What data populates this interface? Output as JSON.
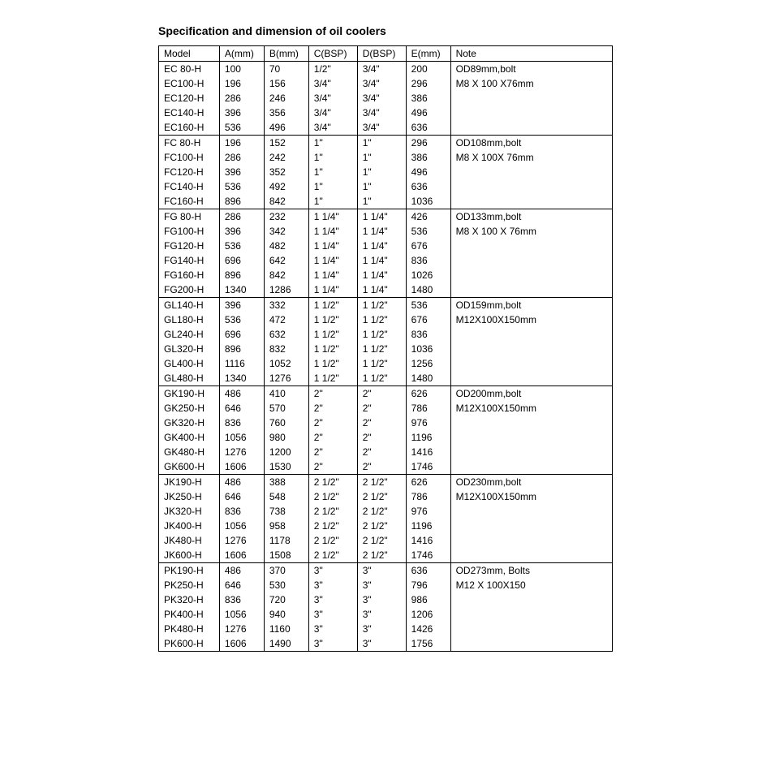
{
  "title": "Specification and dimension of oil coolers",
  "columns": [
    "Model",
    "A(mm)",
    "B(mm)",
    "C(BSP)",
    "D(BSP)",
    "E(mm)",
    "Note"
  ],
  "groups": [
    {
      "note": [
        "OD89mm,bolt",
        "M8 X 100 X76mm"
      ],
      "rows": [
        [
          "EC 80-H",
          "100",
          "70",
          "1/2\"",
          "3/4\"",
          "200"
        ],
        [
          "EC100-H",
          "196",
          "156",
          "3/4\"",
          "3/4\"",
          "296"
        ],
        [
          "EC120-H",
          "286",
          "246",
          "3/4\"",
          "3/4\"",
          "386"
        ],
        [
          "EC140-H",
          "396",
          "356",
          "3/4\"",
          "3/4\"",
          "496"
        ],
        [
          "EC160-H",
          "536",
          "496",
          "3/4\"",
          "3/4\"",
          "636"
        ]
      ]
    },
    {
      "note": [
        "OD108mm,bolt",
        "M8 X 100X 76mm"
      ],
      "rows": [
        [
          "FC 80-H",
          "196",
          "152",
          "1\"",
          "1\"",
          "296"
        ],
        [
          "FC100-H",
          "286",
          "242",
          "1\"",
          "1\"",
          "386"
        ],
        [
          "FC120-H",
          "396",
          "352",
          "1\"",
          "1\"",
          "496"
        ],
        [
          "FC140-H",
          "536",
          "492",
          "1\"",
          "1\"",
          "636"
        ],
        [
          "FC160-H",
          "896",
          "842",
          "1\"",
          "1\"",
          "1036"
        ]
      ]
    },
    {
      "note": [
        "OD133mm,bolt",
        "M8 X 100 X 76mm"
      ],
      "rows": [
        [
          "FG 80-H",
          "286",
          "232",
          "1 1/4\"",
          "1 1/4\"",
          "426"
        ],
        [
          "FG100-H",
          "396",
          "342",
          "1 1/4\"",
          "1 1/4\"",
          "536"
        ],
        [
          "FG120-H",
          "536",
          "482",
          "1 1/4\"",
          "1 1/4\"",
          "676"
        ],
        [
          "FG140-H",
          "696",
          "642",
          "1 1/4\"",
          "1 1/4\"",
          "836"
        ],
        [
          "FG160-H",
          "896",
          "842",
          "1 1/4\"",
          "1 1/4\"",
          "1026"
        ],
        [
          "FG200-H",
          "1340",
          "1286",
          "1 1/4\"",
          "1 1/4\"",
          "1480"
        ]
      ]
    },
    {
      "note": [
        "OD159mm,bolt",
        "M12X100X150mm"
      ],
      "rows": [
        [
          "GL140-H",
          "396",
          "332",
          "1 1/2\"",
          "1 1/2\"",
          "536"
        ],
        [
          "GL180-H",
          "536",
          "472",
          "1 1/2\"",
          "1 1/2\"",
          "676"
        ],
        [
          "GL240-H",
          "696",
          "632",
          "1 1/2\"",
          "1 1/2\"",
          "836"
        ],
        [
          "GL320-H",
          "896",
          "832",
          "1 1/2\"",
          "1 1/2\"",
          "1036"
        ],
        [
          "GL400-H",
          "1116",
          "1052",
          "1 1/2\"",
          "1 1/2\"",
          "1256"
        ],
        [
          "GL480-H",
          "1340",
          "1276",
          "1 1/2\"",
          "1 1/2\"",
          "1480"
        ]
      ]
    },
    {
      "note": [
        "OD200mm,bolt",
        "M12X100X150mm"
      ],
      "rows": [
        [
          "GK190-H",
          "486",
          "410",
          "2\"",
          "2\"",
          "626"
        ],
        [
          "GK250-H",
          "646",
          "570",
          "2\"",
          "2\"",
          "786"
        ],
        [
          "GK320-H",
          "836",
          "760",
          "2\"",
          "2\"",
          "976"
        ],
        [
          "GK400-H",
          "1056",
          "980",
          "2\"",
          "2\"",
          "1196"
        ],
        [
          "GK480-H",
          "1276",
          "1200",
          "2\"",
          "2\"",
          "1416"
        ],
        [
          "GK600-H",
          "1606",
          "1530",
          "2\"",
          "2\"",
          "1746"
        ]
      ]
    },
    {
      "note": [
        "OD230mm,bolt",
        "M12X100X150mm"
      ],
      "rows": [
        [
          "JK190-H",
          "486",
          "388",
          "2 1/2\"",
          "2 1/2\"",
          "626"
        ],
        [
          "JK250-H",
          "646",
          "548",
          "2 1/2\"",
          "2 1/2\"",
          "786"
        ],
        [
          "JK320-H",
          "836",
          "738",
          "2 1/2\"",
          "2 1/2\"",
          "976"
        ],
        [
          "JK400-H",
          "1056",
          "958",
          "2 1/2\"",
          "2 1/2\"",
          "1196"
        ],
        [
          "JK480-H",
          "1276",
          "1178",
          "2 1/2\"",
          "2 1/2\"",
          "1416"
        ],
        [
          "JK600-H",
          "1606",
          "1508",
          "2 1/2\"",
          "2 1/2\"",
          "1746"
        ]
      ]
    },
    {
      "note": [
        "OD273mm,  Bolts",
        "M12 X 100X150"
      ],
      "rows": [
        [
          "PK190-H",
          "486",
          "370",
          "3\"",
          "3\"",
          "636"
        ],
        [
          "PK250-H",
          "646",
          "530",
          "3\"",
          "3\"",
          "796"
        ],
        [
          "PK320-H",
          "836",
          "720",
          "3\"",
          "3\"",
          "986"
        ],
        [
          "PK400-H",
          "1056",
          "940",
          "3\"",
          "3\"",
          "1206"
        ],
        [
          "PK480-H",
          "1276",
          "1160",
          "3\"",
          "3\"",
          "1426"
        ],
        [
          "PK600-H",
          "1606",
          "1490",
          "3\"",
          "3\"",
          "1756"
        ]
      ]
    }
  ]
}
